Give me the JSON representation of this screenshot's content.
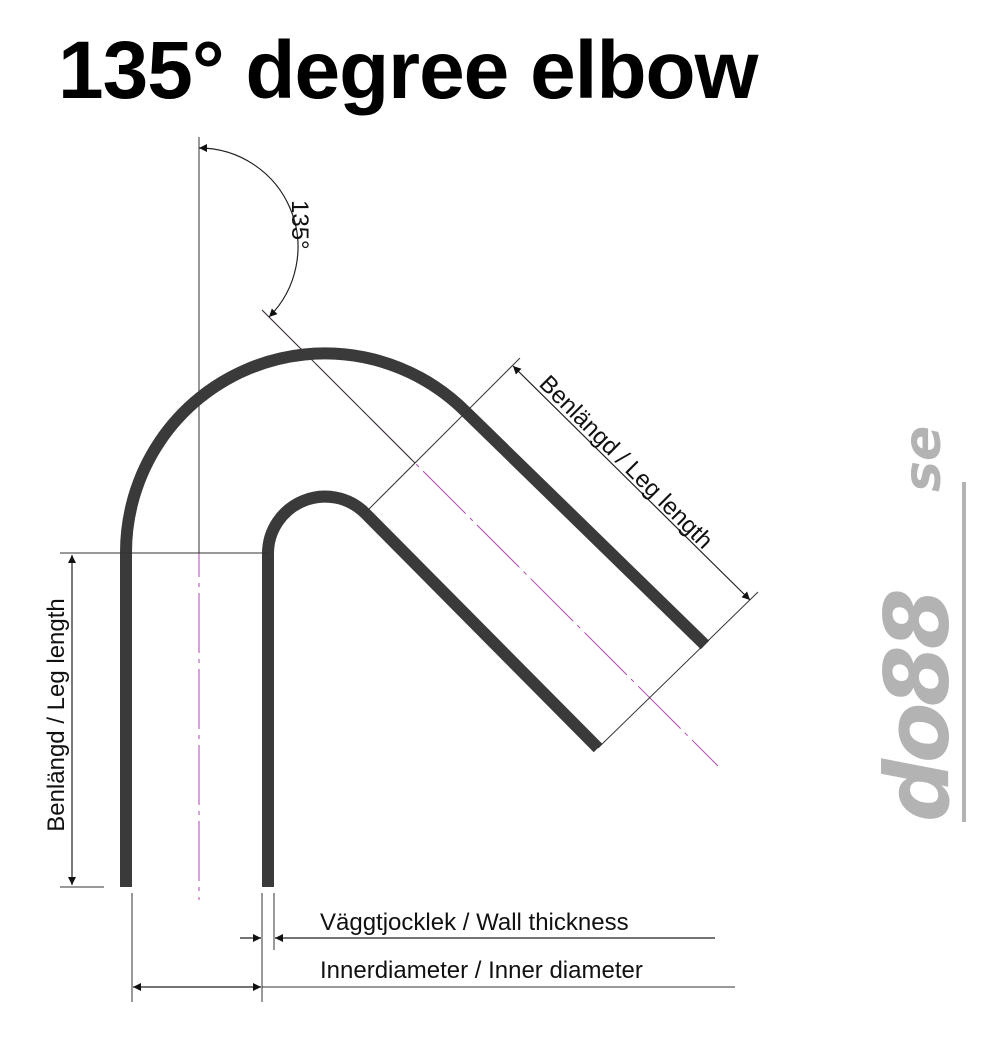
{
  "title": "135° degree elbow",
  "angle_label": "135°",
  "leg_length_label": "Benlängd / Leg length",
  "wall_thickness_label": "Väggtjocklek / Wall thickness",
  "inner_diameter_label": "Innerdiameter / Inner diameter",
  "logo_text": "do88.se",
  "colors": {
    "pipe": "#3a3a3a",
    "centerline": "#b04ab0",
    "dimension": "#222222",
    "logo": "#b3b3b3"
  }
}
